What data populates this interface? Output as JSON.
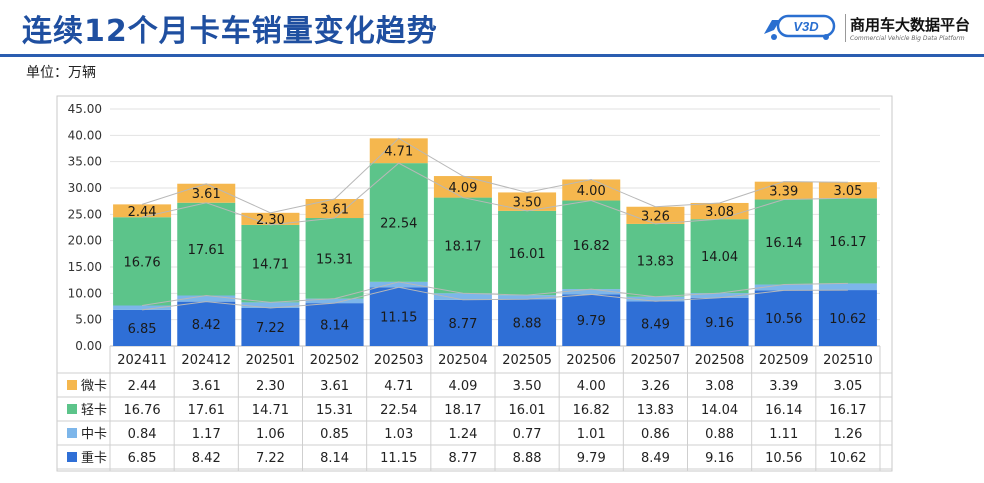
{
  "header": {
    "title": "连续12个月卡车销量变化趋势",
    "unit": "单位：万辆",
    "logo_badge": "V3D",
    "logo_name": "商用车大数据平台",
    "logo_sub": "Commercial Vehicle Big Data Platform"
  },
  "chart_data": {
    "type": "bar",
    "stacked": true,
    "title": "连续12个月卡车销量变化趋势",
    "ylabel": "单位：万辆",
    "ylim": [
      0,
      45
    ],
    "yticks": [
      "0.00",
      "5.00",
      "10.00",
      "15.00",
      "20.00",
      "25.00",
      "30.00",
      "35.00",
      "40.00",
      "45.00"
    ],
    "categories": [
      "202411",
      "202412",
      "202501",
      "202502",
      "202503",
      "202504",
      "202505",
      "202506",
      "202507",
      "202508",
      "202509",
      "202510"
    ],
    "series": [
      {
        "name": "重卡",
        "color": "#2f6fd6",
        "values": [
          6.85,
          8.42,
          7.22,
          8.14,
          11.15,
          8.77,
          8.88,
          9.79,
          8.49,
          9.16,
          10.56,
          10.62
        ],
        "labels": [
          "6.85",
          "8.42",
          "7.22",
          "8.14",
          "11.15",
          "8.77",
          "8.88",
          "9.79",
          "8.49",
          "9.16",
          "10.56",
          "10.62"
        ]
      },
      {
        "name": "中卡",
        "color": "#7db6ea",
        "values": [
          0.84,
          1.17,
          1.06,
          0.85,
          1.03,
          1.24,
          0.77,
          1.01,
          0.86,
          0.88,
          1.11,
          1.26
        ],
        "labels": [
          "0.84",
          "1.17",
          "1.06",
          "0.85",
          "1.03",
          "1.24",
          "0.77",
          "1.01",
          "0.86",
          "0.88",
          "1.11",
          "1.26"
        ]
      },
      {
        "name": "轻卡",
        "color": "#5cc48a",
        "values": [
          16.76,
          17.61,
          14.71,
          15.31,
          22.54,
          18.17,
          16.01,
          16.82,
          13.83,
          14.04,
          16.14,
          16.17
        ],
        "labels": [
          "16.76",
          "17.61",
          "14.71",
          "15.31",
          "22.54",
          "18.17",
          "16.01",
          "16.82",
          "13.83",
          "14.04",
          "16.14",
          "16.17"
        ]
      },
      {
        "name": "微卡",
        "color": "#f5b74e",
        "values": [
          2.44,
          3.61,
          2.3,
          3.61,
          4.71,
          4.09,
          3.5,
          4.0,
          3.26,
          3.08,
          3.39,
          3.05
        ],
        "labels": [
          "2.44",
          "3.61",
          "2.30",
          "3.61",
          "4.71",
          "4.09",
          "3.50",
          "4.00",
          "3.26",
          "3.08",
          "3.39",
          "3.05"
        ]
      }
    ],
    "table_rows_order": [
      "微卡",
      "轻卡",
      "中卡",
      "重卡"
    ],
    "grid": true,
    "legend": "data-table"
  }
}
